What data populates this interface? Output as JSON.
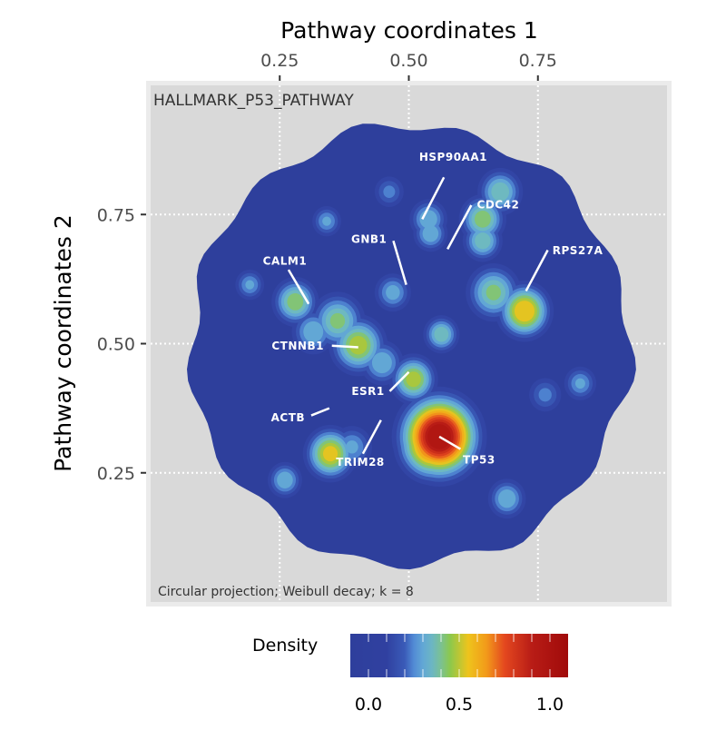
{
  "chart_data": {
    "type": "heatmap",
    "title": "HALLMARK_P53_PATHWAY",
    "caption": "Circular projection; Weibull decay; k = 8",
    "xlabel": "Pathway coordinates 1",
    "ylabel": "Pathway coordinates 2",
    "xlim": [
      0,
      1
    ],
    "ylim": [
      0,
      1
    ],
    "x_ticks": [
      {
        "value": 0.25,
        "label": "0.25"
      },
      {
        "value": 0.5,
        "label": "0.50"
      },
      {
        "value": 0.75,
        "label": "0.75"
      }
    ],
    "y_ticks": [
      {
        "value": 0.25,
        "label": "0.25"
      },
      {
        "value": 0.5,
        "label": "0.50"
      },
      {
        "value": 0.75,
        "label": "0.75"
      }
    ],
    "x_axis_position": "top",
    "grid": true,
    "disk": {
      "cx": 0.502,
      "cy": 0.496,
      "r": 0.425
    },
    "density_peaks": [
      {
        "x": 0.559,
        "y": 0.32,
        "density": 1.0,
        "spread": 0.04
      },
      {
        "x": 0.545,
        "y": 0.305,
        "density": 0.75,
        "spread": 0.035
      },
      {
        "x": 0.724,
        "y": 0.563,
        "density": 0.6,
        "spread": 0.028
      },
      {
        "x": 0.664,
        "y": 0.599,
        "density": 0.42,
        "spread": 0.03
      },
      {
        "x": 0.643,
        "y": 0.741,
        "density": 0.45,
        "spread": 0.025
      },
      {
        "x": 0.677,
        "y": 0.794,
        "density": 0.4,
        "spread": 0.025
      },
      {
        "x": 0.643,
        "y": 0.699,
        "density": 0.4,
        "spread": 0.022
      },
      {
        "x": 0.538,
        "y": 0.741,
        "density": 0.35,
        "spread": 0.022
      },
      {
        "x": 0.542,
        "y": 0.713,
        "density": 0.35,
        "spread": 0.02
      },
      {
        "x": 0.469,
        "y": 0.599,
        "density": 0.32,
        "spread": 0.022
      },
      {
        "x": 0.563,
        "y": 0.518,
        "density": 0.4,
        "spread": 0.02
      },
      {
        "x": 0.28,
        "y": 0.581,
        "density": 0.45,
        "spread": 0.025
      },
      {
        "x": 0.315,
        "y": 0.523,
        "density": 0.35,
        "spread": 0.025
      },
      {
        "x": 0.362,
        "y": 0.544,
        "density": 0.42,
        "spread": 0.03
      },
      {
        "x": 0.402,
        "y": 0.497,
        "density": 0.5,
        "spread": 0.03
      },
      {
        "x": 0.448,
        "y": 0.463,
        "density": 0.35,
        "spread": 0.025
      },
      {
        "x": 0.509,
        "y": 0.431,
        "density": 0.5,
        "spread": 0.025
      },
      {
        "x": 0.348,
        "y": 0.287,
        "density": 0.55,
        "spread": 0.027
      },
      {
        "x": 0.39,
        "y": 0.3,
        "density": 0.3,
        "spread": 0.025
      },
      {
        "x": 0.26,
        "y": 0.236,
        "density": 0.35,
        "spread": 0.02
      },
      {
        "x": 0.69,
        "y": 0.2,
        "density": 0.35,
        "spread": 0.022
      },
      {
        "x": 0.192,
        "y": 0.614,
        "density": 0.3,
        "spread": 0.018
      },
      {
        "x": 0.341,
        "y": 0.737,
        "density": 0.3,
        "spread": 0.018
      },
      {
        "x": 0.832,
        "y": 0.423,
        "density": 0.3,
        "spread": 0.02
      },
      {
        "x": 0.462,
        "y": 0.794,
        "density": 0.25,
        "spread": 0.02
      },
      {
        "x": 0.764,
        "y": 0.401,
        "density": 0.25,
        "spread": 0.022
      }
    ],
    "annotations": [
      {
        "label": "HSP90AA1",
        "tx": 0.586,
        "ty": 0.861,
        "x1": 0.568,
        "y1": 0.822,
        "x2": 0.526,
        "y2": 0.741
      },
      {
        "label": "CDC42",
        "tx": 0.673,
        "ty": 0.769,
        "x1": 0.621,
        "y1": 0.768,
        "x2": 0.575,
        "y2": 0.683
      },
      {
        "label": "GNB1",
        "tx": 0.423,
        "ty": 0.702,
        "x1": 0.47,
        "y1": 0.699,
        "x2": 0.495,
        "y2": 0.614
      },
      {
        "label": "RPS27A",
        "tx": 0.827,
        "ty": 0.68,
        "x1": 0.769,
        "y1": 0.681,
        "x2": 0.727,
        "y2": 0.602
      },
      {
        "label": "CALM1",
        "tx": 0.26,
        "ty": 0.66,
        "x1": 0.267,
        "y1": 0.643,
        "x2": 0.306,
        "y2": 0.577
      },
      {
        "label": "CTNNB1",
        "tx": 0.285,
        "ty": 0.496,
        "x1": 0.351,
        "y1": 0.496,
        "x2": 0.402,
        "y2": 0.493
      },
      {
        "label": "ESR1",
        "tx": 0.421,
        "ty": 0.408,
        "x1": 0.463,
        "y1": 0.408,
        "x2": 0.5,
        "y2": 0.445
      },
      {
        "label": "ACTB",
        "tx": 0.266,
        "ty": 0.357,
        "x1": 0.311,
        "y1": 0.361,
        "x2": 0.346,
        "y2": 0.375
      },
      {
        "label": "TRIM28",
        "tx": 0.406,
        "ty": 0.271,
        "x1": 0.411,
        "y1": 0.287,
        "x2": 0.446,
        "y2": 0.352
      },
      {
        "label": "TP53",
        "tx": 0.636,
        "ty": 0.275,
        "x1": 0.6,
        "y1": 0.296,
        "x2": 0.559,
        "y2": 0.32
      }
    ],
    "legend": {
      "title": "Density",
      "position": "bottom",
      "range": [
        -0.1,
        1.1
      ],
      "ticks": [
        {
          "value": 0.0,
          "label": "0.0"
        },
        {
          "value": 0.5,
          "label": "0.5"
        },
        {
          "value": 1.0,
          "label": "1.0"
        }
      ]
    },
    "colormap": [
      {
        "v": -0.1,
        "c": "#2e3f9c"
      },
      {
        "v": 0.1,
        "c": "#3040a0"
      },
      {
        "v": 0.2,
        "c": "#3a5bb8"
      },
      {
        "v": 0.27,
        "c": "#5c9ee0"
      },
      {
        "v": 0.37,
        "c": "#70bcbc"
      },
      {
        "v": 0.45,
        "c": "#8cc84c"
      },
      {
        "v": 0.55,
        "c": "#eec41c"
      },
      {
        "v": 0.65,
        "c": "#f29a1a"
      },
      {
        "v": 0.75,
        "c": "#e4481f"
      },
      {
        "v": 0.9,
        "c": "#b81c16"
      },
      {
        "v": 1.1,
        "c": "#a00a0a"
      }
    ]
  }
}
